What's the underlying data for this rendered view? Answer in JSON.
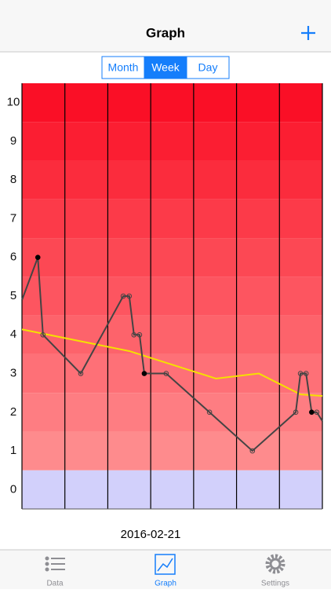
{
  "header": {
    "title": "Graph"
  },
  "segmented": {
    "options": [
      "Month",
      "Week",
      "Day"
    ],
    "selected": 1
  },
  "chart_data": {
    "type": "line",
    "x_label": "2016-02-21",
    "xlim": [
      0,
      7
    ],
    "vertical_grid": true,
    "ylim": [
      -0.5,
      10.5
    ],
    "yticks": [
      0,
      1,
      2,
      3,
      4,
      5,
      6,
      7,
      8,
      9,
      10
    ],
    "band_colors": [
      "#d2d0fb",
      "#fe8b8d",
      "#fe7d82",
      "#fe7077",
      "#fd636b",
      "#fd5560",
      "#fc4854",
      "#fc3a49",
      "#fb2c3d",
      "#fb1e32",
      "#fa0f26"
    ],
    "series": [
      {
        "color": "#444444",
        "x": [
          0,
          0.37,
          0.49,
          1.37,
          2.36,
          2.5,
          2.61,
          2.74,
          2.85,
          3.36,
          4.37,
          5.37,
          6.38,
          6.49,
          6.62,
          6.75,
          6.87,
          7
        ],
        "values": [
          4.9,
          6,
          4,
          3,
          5,
          5,
          4,
          4,
          3,
          3,
          2,
          1,
          2,
          3,
          3,
          2,
          2,
          1.77
        ],
        "markers": [
          null,
          "filled",
          "hollow",
          "hollow",
          "hollow",
          "hollow",
          "hollow",
          "hollow",
          "filled",
          "hollow",
          "hollow",
          "hollow",
          "hollow",
          "hollow",
          "hollow",
          "filled",
          "hollow",
          null
        ]
      },
      {
        "color": "#f5e000",
        "x": [
          0,
          2.5,
          4.52,
          5.52,
          6.49,
          7
        ],
        "values": [
          4.14,
          3.58,
          2.87,
          3.0,
          2.46,
          2.42
        ]
      }
    ]
  },
  "tabs": [
    {
      "label": "Data"
    },
    {
      "label": "Graph"
    },
    {
      "label": "Settings"
    }
  ],
  "selected_tab": 1
}
